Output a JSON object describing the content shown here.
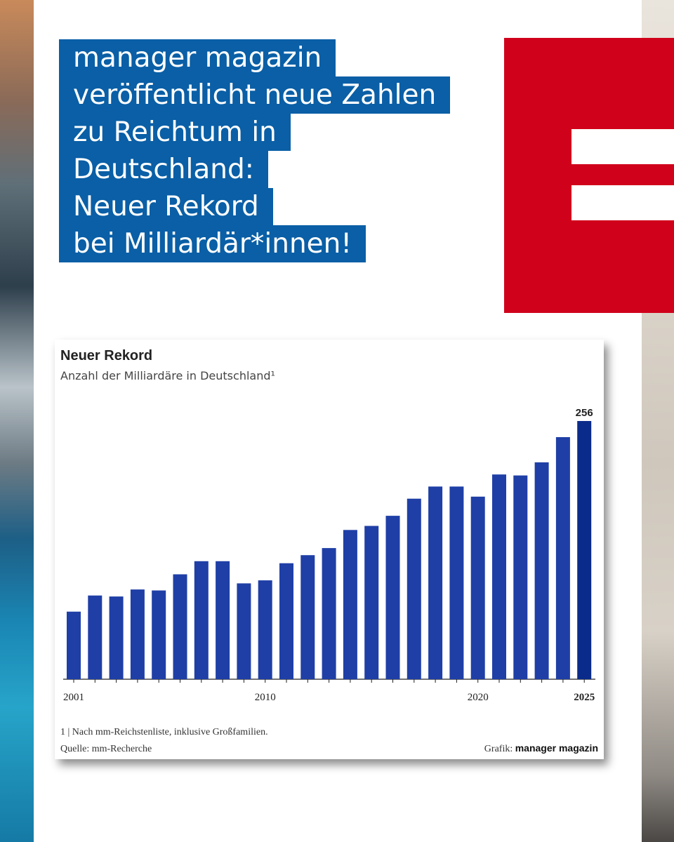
{
  "headline": {
    "lines": [
      "manager magazin",
      "veröffentlicht neue Zahlen",
      "zu Reichtum in",
      "Deutschland:",
      "Neuer Rekord",
      "bei Milliardär*innen!"
    ]
  },
  "colors": {
    "headline_bg": "#0a5fa6",
    "logo": "#d0021b",
    "bar": "#1f3fa6",
    "bar_highlight": "#0b2b8a"
  },
  "chart_data": {
    "type": "bar",
    "title": "Neuer Rekord",
    "subtitle": "Anzahl der Milliardäre in Deutschland¹",
    "categories": [
      2001,
      2002,
      2003,
      2004,
      2005,
      2006,
      2007,
      2008,
      2009,
      2010,
      2011,
      2012,
      2013,
      2014,
      2015,
      2016,
      2017,
      2018,
      2019,
      2020,
      2021,
      2022,
      2023,
      2024,
      2025
    ],
    "values": [
      67,
      83,
      82,
      89,
      88,
      104,
      117,
      117,
      95,
      98,
      115,
      123,
      130,
      148,
      152,
      162,
      179,
      191,
      191,
      181,
      203,
      202,
      215,
      240,
      256
    ],
    "x_tick_labels": [
      "2001",
      "2010",
      "2020",
      "2025"
    ],
    "highlight_label": "256",
    "ylim": [
      0,
      256
    ],
    "grid": false,
    "footnote": "1 | Nach mm-Reichstenliste, inklusive Großfamilien.",
    "source": "Quelle: mm-Recherche",
    "credit_prefix": "Grafik:",
    "credit_brand": "manager magazin"
  }
}
